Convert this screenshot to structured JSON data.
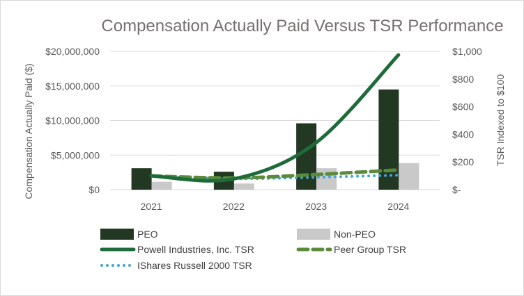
{
  "chart_data": {
    "type": "bar",
    "title": "Compensation Actually Paid Versus TSR Performance",
    "categories": [
      "2021",
      "2022",
      "2023",
      "2024"
    ],
    "ylabel": "Compensation Actually Paid ($)",
    "y2label": "TSR Indexed to $100",
    "ylim": [
      0,
      20000000
    ],
    "y2lim": [
      0,
      1000
    ],
    "yticks": [
      "$0",
      "$5,000,000",
      "$10,000,000",
      "$15,000,000",
      "$20,000,000"
    ],
    "y2ticks": [
      "$-",
      "$200",
      "$400",
      "$600",
      "$800",
      "$1,000"
    ],
    "grid": true,
    "legend_position": "bottom",
    "bar_series": [
      {
        "name": "PEO",
        "values": [
          3100000,
          2600000,
          9600000,
          14500000
        ],
        "color": "#233823"
      },
      {
        "name": "Non-PEO",
        "values": [
          1150000,
          900000,
          3100000,
          3850000
        ],
        "color": "#c9c9c9"
      }
    ],
    "line_series": [
      {
        "name": "Powell Industries, Inc. TSR",
        "axis": "secondary",
        "values": [
          100,
          78,
          340,
          975
        ],
        "color": "#1e6b3a",
        "style": "solid"
      },
      {
        "name": "Peer Group TSR",
        "axis": "secondary",
        "values": [
          100,
          85,
          110,
          143
        ],
        "color": "#5a8a3a",
        "style": "dashed"
      },
      {
        "name": "IShares Russell 2000 TSR",
        "axis": "secondary",
        "values": [
          100,
          79,
          90,
          105
        ],
        "color": "#3fa6dc",
        "style": "dotted"
      }
    ]
  }
}
